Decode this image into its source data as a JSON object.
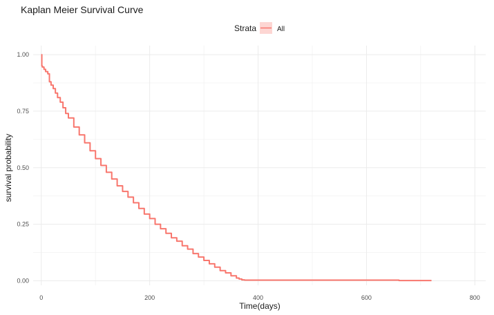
{
  "chart_data": {
    "type": "line",
    "title": "Kaplan Meier Survival Curve",
    "xlabel": "Time(days)",
    "ylabel": "survival probability",
    "xlim": [
      -15,
      820
    ],
    "ylim": [
      -0.02,
      1.04
    ],
    "x_ticks": [
      0,
      200,
      400,
      600,
      800
    ],
    "x_tick_labels": [
      "0",
      "200",
      "400",
      "600",
      "800"
    ],
    "y_ticks": [
      0,
      0.25,
      0.5,
      0.75,
      1.0
    ],
    "y_tick_labels": [
      "0.00",
      "0.25",
      "0.50",
      "0.75",
      "1.00"
    ],
    "grid": true,
    "legend": {
      "title": "Strata",
      "position": "top"
    },
    "series": [
      {
        "name": "All",
        "color": "#f8766d",
        "step": true,
        "x": [
          0,
          1,
          2,
          5,
          8,
          12,
          15,
          18,
          22,
          26,
          30,
          35,
          40,
          45,
          50,
          60,
          70,
          80,
          90,
          100,
          110,
          120,
          130,
          140,
          150,
          160,
          170,
          180,
          190,
          200,
          210,
          220,
          230,
          240,
          250,
          260,
          270,
          280,
          290,
          300,
          310,
          320,
          330,
          340,
          350,
          360,
          365,
          370,
          375,
          380,
          390,
          400,
          500,
          600,
          650,
          660,
          700,
          720
        ],
        "y": [
          1.0,
          0.95,
          0.945,
          0.935,
          0.925,
          0.915,
          0.88,
          0.865,
          0.85,
          0.83,
          0.81,
          0.79,
          0.765,
          0.74,
          0.72,
          0.68,
          0.645,
          0.61,
          0.575,
          0.54,
          0.51,
          0.48,
          0.45,
          0.42,
          0.395,
          0.37,
          0.345,
          0.32,
          0.295,
          0.275,
          0.25,
          0.23,
          0.21,
          0.19,
          0.175,
          0.155,
          0.14,
          0.12,
          0.105,
          0.09,
          0.075,
          0.06,
          0.045,
          0.035,
          0.022,
          0.012,
          0.008,
          0.004,
          0.003,
          0.003,
          0.003,
          0.003,
          0.003,
          0.003,
          0.003,
          0.001,
          0.001,
          0.001
        ]
      }
    ]
  }
}
